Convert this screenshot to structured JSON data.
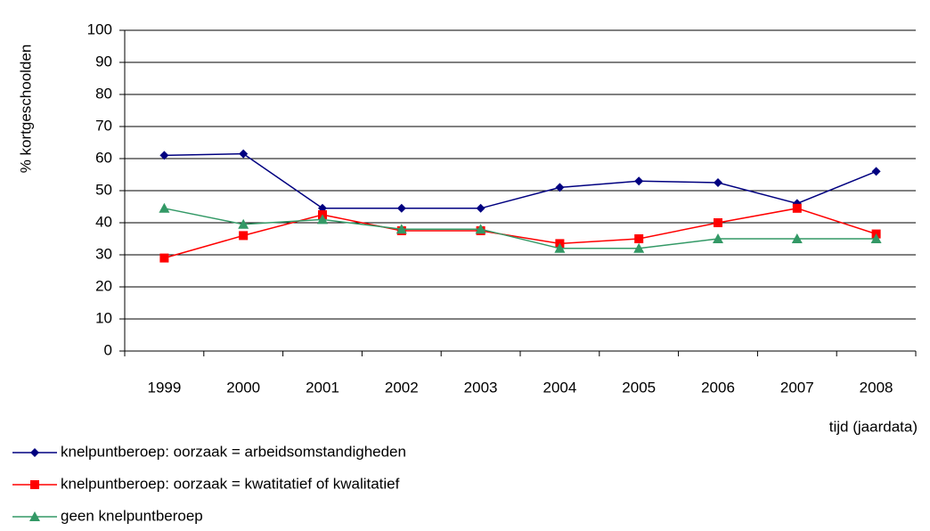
{
  "chart_data": {
    "type": "line",
    "y_label": "% kortgeschoolden",
    "x_label": "tijd (jaardata)",
    "categories": [
      "1999",
      "2000",
      "2001",
      "2002",
      "2003",
      "2004",
      "2005",
      "2006",
      "2007",
      "2008"
    ],
    "series": [
      {
        "name": "knelpuntberoep: oorzaak = arbeidsomstandigheden",
        "color": "#000080",
        "marker": "diamond",
        "values": [
          61,
          61.5,
          44.5,
          44.5,
          44.5,
          51,
          53,
          52.5,
          46,
          56
        ]
      },
      {
        "name": "knelpuntberoep: oorzaak = kwatitatief of kwalitatief",
        "color": "#ff0000",
        "marker": "square",
        "values": [
          29,
          36,
          42.5,
          37.5,
          37.5,
          33.5,
          35,
          40,
          44.5,
          36.5
        ]
      },
      {
        "name": "geen knelpuntberoep",
        "color": "#339966",
        "marker": "triangle",
        "values": [
          44.5,
          39.5,
          41,
          38,
          38,
          32,
          32,
          35,
          35,
          35
        ]
      }
    ],
    "ylim": [
      0,
      100
    ],
    "yticks": [
      0,
      10,
      20,
      30,
      40,
      50,
      60,
      70,
      80,
      90,
      100
    ],
    "grid": true
  }
}
